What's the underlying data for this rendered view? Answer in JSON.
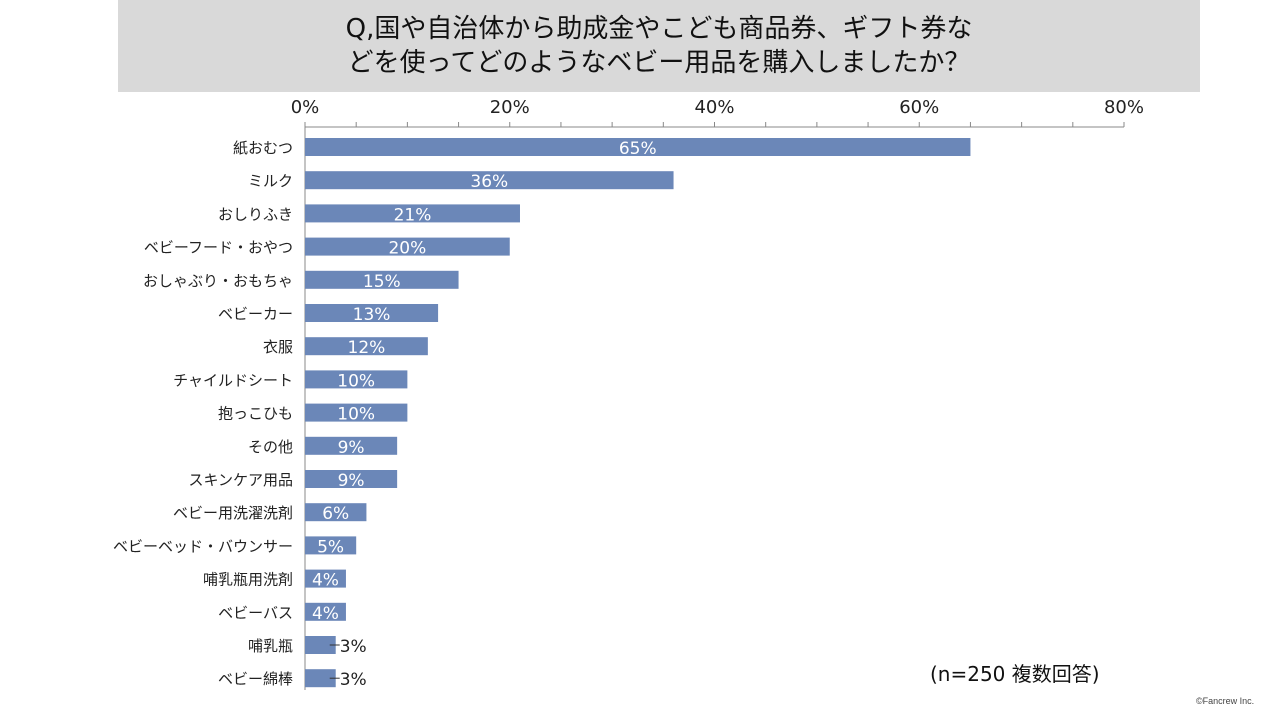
{
  "header": {
    "title_line1": "Q,国や自治体から助成金やこども商品券、ギフト券な",
    "title_line2": "どを使ってどのようなベビー用品を購入しましたか？"
  },
  "footer": {
    "note": "(n=250 複数回答)",
    "copyright": "©Fancrew Inc."
  },
  "chart_data": {
    "type": "bar",
    "orientation": "horizontal",
    "title": "Q,国や自治体から助成金やこども商品券、ギフト券などを使ってどのようなベビー用品を購入しましたか？",
    "categories": [
      "紙おむつ",
      "ミルク",
      "おしりふき",
      "ベビーフード・おやつ",
      "おしゃぶり・おもちゃ",
      "ベビーカー",
      "衣服",
      "チャイルドシート",
      "抱っこひも",
      "その他",
      "スキンケア用品",
      "ベビー用洗濯洗剤",
      "ベビーベッド・バウンサー",
      "哺乳瓶用洗剤",
      "ベビーバス",
      "哺乳瓶",
      "ベビー綿棒"
    ],
    "values": [
      65,
      36,
      21,
      20,
      15,
      13,
      12,
      10,
      10,
      9,
      9,
      6,
      5,
      4,
      4,
      3,
      3
    ],
    "value_labels": [
      "65%",
      "36%",
      "21%",
      "20%",
      "15%",
      "13%",
      "12%",
      "10%",
      "10%",
      "9%",
      "9%",
      "6%",
      "5%",
      "4%",
      "4%",
      "3%",
      "3%"
    ],
    "xlim": [
      0,
      80
    ],
    "xticks": [
      0,
      20,
      40,
      60,
      80
    ],
    "xtick_labels": [
      "0%",
      "20%",
      "40%",
      "60%",
      "80%"
    ],
    "axis_position": "top",
    "grid": false,
    "bar_color": "#6b87b8"
  }
}
